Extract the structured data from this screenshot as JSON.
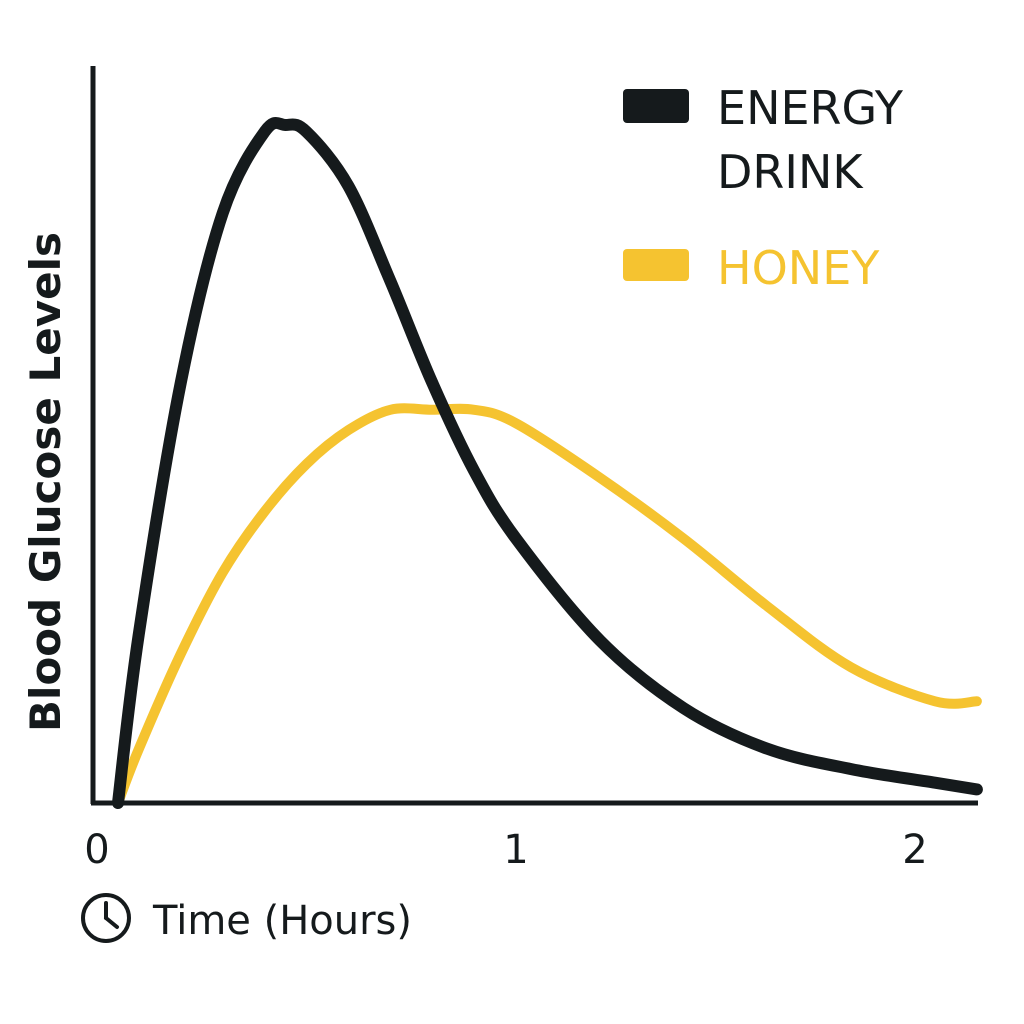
{
  "chart_data": {
    "type": "line",
    "title": "",
    "xlabel": "Time (Hours)",
    "ylabel": "Blood Glucose Levels",
    "xlim": [
      0,
      2.1
    ],
    "ylim": [
      0,
      1
    ],
    "xticks": [
      0,
      1,
      2
    ],
    "grid": false,
    "legend_position": "top-right",
    "series": [
      {
        "name": "ENERGY DRINK",
        "color": "#151a1c",
        "x": [
          0.05,
          0.1,
          0.2,
          0.3,
          0.4,
          0.45,
          0.5,
          0.6,
          0.7,
          0.8,
          0.9,
          1.0,
          1.2,
          1.4,
          1.6,
          1.8,
          2.0,
          2.1
        ],
        "y": [
          0.0,
          0.25,
          0.62,
          0.87,
          0.99,
          1.0,
          0.99,
          0.91,
          0.77,
          0.62,
          0.49,
          0.39,
          0.24,
          0.14,
          0.08,
          0.05,
          0.03,
          0.02
        ]
      },
      {
        "name": "HONEY",
        "color": "#f5c330",
        "x": [
          0.05,
          0.1,
          0.2,
          0.3,
          0.4,
          0.5,
          0.6,
          0.7,
          0.8,
          0.9,
          1.0,
          1.2,
          1.4,
          1.6,
          1.8,
          2.0,
          2.1
        ],
        "y": [
          0.0,
          0.08,
          0.22,
          0.34,
          0.43,
          0.5,
          0.55,
          0.58,
          0.58,
          0.58,
          0.56,
          0.48,
          0.39,
          0.29,
          0.2,
          0.15,
          0.15
        ]
      }
    ]
  },
  "icons": {
    "time_icon": "clock-icon"
  }
}
